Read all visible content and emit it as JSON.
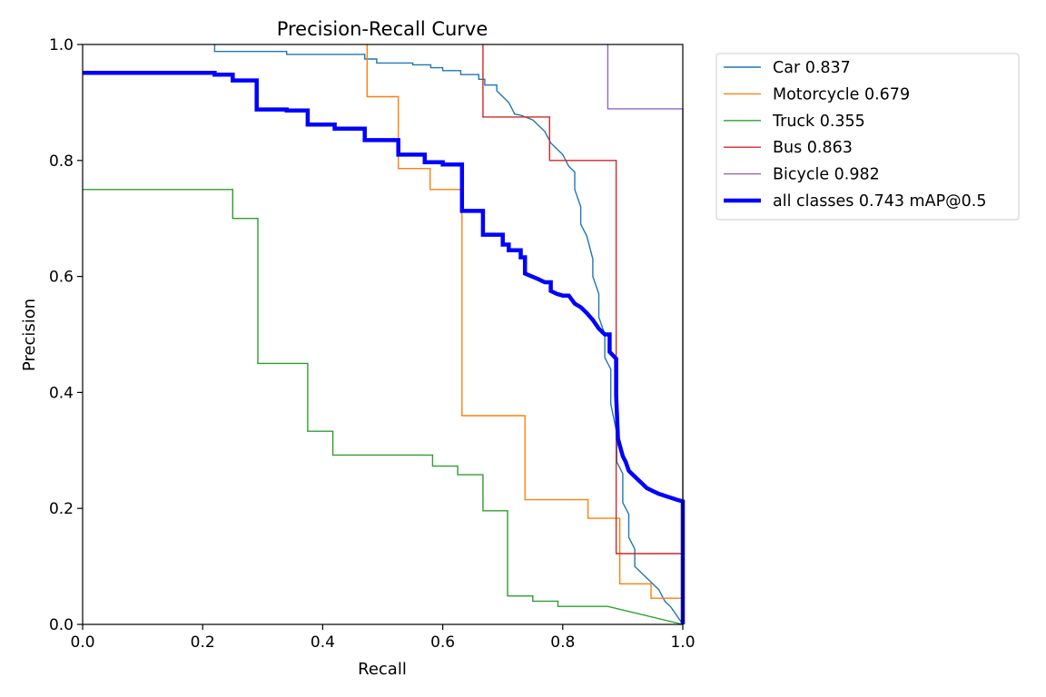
{
  "chart_data": {
    "type": "line",
    "title": "Precision-Recall Curve",
    "xlabel": "Recall",
    "ylabel": "Precision",
    "xlim": [
      0,
      1
    ],
    "ylim": [
      0,
      1
    ],
    "xticks": [
      "0.0",
      "0.2",
      "0.4",
      "0.6",
      "0.8",
      "1.0"
    ],
    "yticks": [
      "0.0",
      "0.2",
      "0.4",
      "0.6",
      "0.8",
      "1.0"
    ],
    "grid": false,
    "legend_position": "outside-top-right",
    "series": [
      {
        "name": "Car 0.837",
        "color": "#1f77b4",
        "width": "thin",
        "points": [
          [
            0.22,
            1.0
          ],
          [
            0.22,
            0.988
          ],
          [
            0.34,
            0.988
          ],
          [
            0.34,
            0.983
          ],
          [
            0.47,
            0.983
          ],
          [
            0.47,
            0.975
          ],
          [
            0.49,
            0.975
          ],
          [
            0.49,
            0.968
          ],
          [
            0.55,
            0.968
          ],
          [
            0.55,
            0.965
          ],
          [
            0.58,
            0.965
          ],
          [
            0.58,
            0.96
          ],
          [
            0.6,
            0.96
          ],
          [
            0.6,
            0.955
          ],
          [
            0.63,
            0.955
          ],
          [
            0.63,
            0.948
          ],
          [
            0.66,
            0.948
          ],
          [
            0.66,
            0.94
          ],
          [
            0.67,
            0.94
          ],
          [
            0.67,
            0.93
          ],
          [
            0.69,
            0.93
          ],
          [
            0.69,
            0.92
          ],
          [
            0.7,
            0.91
          ],
          [
            0.71,
            0.9
          ],
          [
            0.72,
            0.88
          ],
          [
            0.73,
            0.878
          ],
          [
            0.75,
            0.87
          ],
          [
            0.76,
            0.86
          ],
          [
            0.77,
            0.85
          ],
          [
            0.78,
            0.83
          ],
          [
            0.79,
            0.82
          ],
          [
            0.8,
            0.81
          ],
          [
            0.81,
            0.79
          ],
          [
            0.82,
            0.78
          ],
          [
            0.82,
            0.75
          ],
          [
            0.83,
            0.72
          ],
          [
            0.83,
            0.69
          ],
          [
            0.84,
            0.67
          ],
          [
            0.85,
            0.63
          ],
          [
            0.85,
            0.6
          ],
          [
            0.86,
            0.57
          ],
          [
            0.86,
            0.53
          ],
          [
            0.87,
            0.5
          ],
          [
            0.87,
            0.46
          ],
          [
            0.88,
            0.44
          ],
          [
            0.88,
            0.38
          ],
          [
            0.89,
            0.33
          ],
          [
            0.89,
            0.28
          ],
          [
            0.9,
            0.26
          ],
          [
            0.9,
            0.21
          ],
          [
            0.91,
            0.19
          ],
          [
            0.91,
            0.15
          ],
          [
            0.92,
            0.13
          ],
          [
            0.92,
            0.1
          ],
          [
            0.93,
            0.09
          ],
          [
            0.94,
            0.08
          ],
          [
            0.95,
            0.07
          ],
          [
            0.96,
            0.06
          ],
          [
            0.97,
            0.04
          ],
          [
            0.98,
            0.03
          ],
          [
            0.99,
            0.015
          ],
          [
            1.0,
            0.0
          ]
        ]
      },
      {
        "name": "Motorcycle 0.679",
        "color": "#ff7f0e",
        "width": "thin",
        "points": [
          [
            0.474,
            1.0
          ],
          [
            0.474,
            0.91
          ],
          [
            0.526,
            0.91
          ],
          [
            0.526,
            0.786
          ],
          [
            0.579,
            0.786
          ],
          [
            0.579,
            0.75
          ],
          [
            0.632,
            0.75
          ],
          [
            0.632,
            0.36
          ],
          [
            0.737,
            0.36
          ],
          [
            0.737,
            0.215
          ],
          [
            0.842,
            0.215
          ],
          [
            0.842,
            0.183
          ],
          [
            0.895,
            0.183
          ],
          [
            0.895,
            0.07
          ],
          [
            0.947,
            0.07
          ],
          [
            0.947,
            0.045
          ],
          [
            1.0,
            0.045
          ],
          [
            1.0,
            0.0
          ]
        ]
      },
      {
        "name": "Truck 0.355",
        "color": "#2ca02c",
        "width": "thin",
        "points": [
          [
            0.0,
            0.75
          ],
          [
            0.25,
            0.75
          ],
          [
            0.25,
            0.7
          ],
          [
            0.292,
            0.7
          ],
          [
            0.292,
            0.45
          ],
          [
            0.375,
            0.45
          ],
          [
            0.375,
            0.333
          ],
          [
            0.417,
            0.333
          ],
          [
            0.417,
            0.292
          ],
          [
            0.583,
            0.292
          ],
          [
            0.583,
            0.273
          ],
          [
            0.625,
            0.273
          ],
          [
            0.625,
            0.258
          ],
          [
            0.667,
            0.258
          ],
          [
            0.667,
            0.196
          ],
          [
            0.708,
            0.196
          ],
          [
            0.708,
            0.049
          ],
          [
            0.75,
            0.049
          ],
          [
            0.75,
            0.04
          ],
          [
            0.792,
            0.04
          ],
          [
            0.792,
            0.031
          ],
          [
            0.875,
            0.031
          ],
          [
            1.0,
            0.0
          ]
        ]
      },
      {
        "name": "Bus 0.863",
        "color": "#d62728",
        "width": "thin",
        "points": [
          [
            0.667,
            1.0
          ],
          [
            0.667,
            0.875
          ],
          [
            0.778,
            0.875
          ],
          [
            0.778,
            0.8
          ],
          [
            0.889,
            0.8
          ],
          [
            0.889,
            0.122
          ],
          [
            1.0,
            0.122
          ],
          [
            1.0,
            0.0
          ]
        ]
      },
      {
        "name": "Bicycle 0.982",
        "color": "#9467bd",
        "width": "thin",
        "points": [
          [
            0.875,
            1.0
          ],
          [
            0.875,
            0.889
          ],
          [
            1.0,
            0.889
          ],
          [
            1.0,
            0.0
          ]
        ]
      },
      {
        "name": "all classes 0.743 mAP@0.5",
        "color": "#0000ff",
        "width": "thick",
        "points": [
          [
            0.0,
            0.951
          ],
          [
            0.22,
            0.951
          ],
          [
            0.22,
            0.948
          ],
          [
            0.25,
            0.948
          ],
          [
            0.25,
            0.938
          ],
          [
            0.29,
            0.938
          ],
          [
            0.29,
            0.888
          ],
          [
            0.34,
            0.888
          ],
          [
            0.34,
            0.886
          ],
          [
            0.375,
            0.886
          ],
          [
            0.375,
            0.862
          ],
          [
            0.42,
            0.862
          ],
          [
            0.42,
            0.855
          ],
          [
            0.47,
            0.855
          ],
          [
            0.47,
            0.835
          ],
          [
            0.526,
            0.835
          ],
          [
            0.526,
            0.81
          ],
          [
            0.57,
            0.81
          ],
          [
            0.57,
            0.797
          ],
          [
            0.6,
            0.797
          ],
          [
            0.6,
            0.793
          ],
          [
            0.632,
            0.793
          ],
          [
            0.632,
            0.713
          ],
          [
            0.667,
            0.713
          ],
          [
            0.667,
            0.672
          ],
          [
            0.7,
            0.672
          ],
          [
            0.7,
            0.655
          ],
          [
            0.71,
            0.655
          ],
          [
            0.71,
            0.645
          ],
          [
            0.73,
            0.645
          ],
          [
            0.73,
            0.633
          ],
          [
            0.737,
            0.633
          ],
          [
            0.737,
            0.605
          ],
          [
            0.76,
            0.595
          ],
          [
            0.77,
            0.59
          ],
          [
            0.78,
            0.59
          ],
          [
            0.78,
            0.575
          ],
          [
            0.79,
            0.57
          ],
          [
            0.8,
            0.567
          ],
          [
            0.81,
            0.567
          ],
          [
            0.82,
            0.553
          ],
          [
            0.83,
            0.547
          ],
          [
            0.84,
            0.537
          ],
          [
            0.85,
            0.525
          ],
          [
            0.86,
            0.51
          ],
          [
            0.87,
            0.5
          ],
          [
            0.878,
            0.5
          ],
          [
            0.878,
            0.47
          ],
          [
            0.889,
            0.458
          ],
          [
            0.889,
            0.395
          ],
          [
            0.892,
            0.32
          ],
          [
            0.9,
            0.29
          ],
          [
            0.905,
            0.28
          ],
          [
            0.91,
            0.265
          ],
          [
            0.92,
            0.255
          ],
          [
            0.93,
            0.245
          ],
          [
            0.94,
            0.235
          ],
          [
            0.95,
            0.23
          ],
          [
            0.96,
            0.225
          ],
          [
            0.975,
            0.22
          ],
          [
            0.99,
            0.215
          ],
          [
            1.0,
            0.212
          ],
          [
            1.0,
            0.0
          ]
        ]
      }
    ]
  }
}
